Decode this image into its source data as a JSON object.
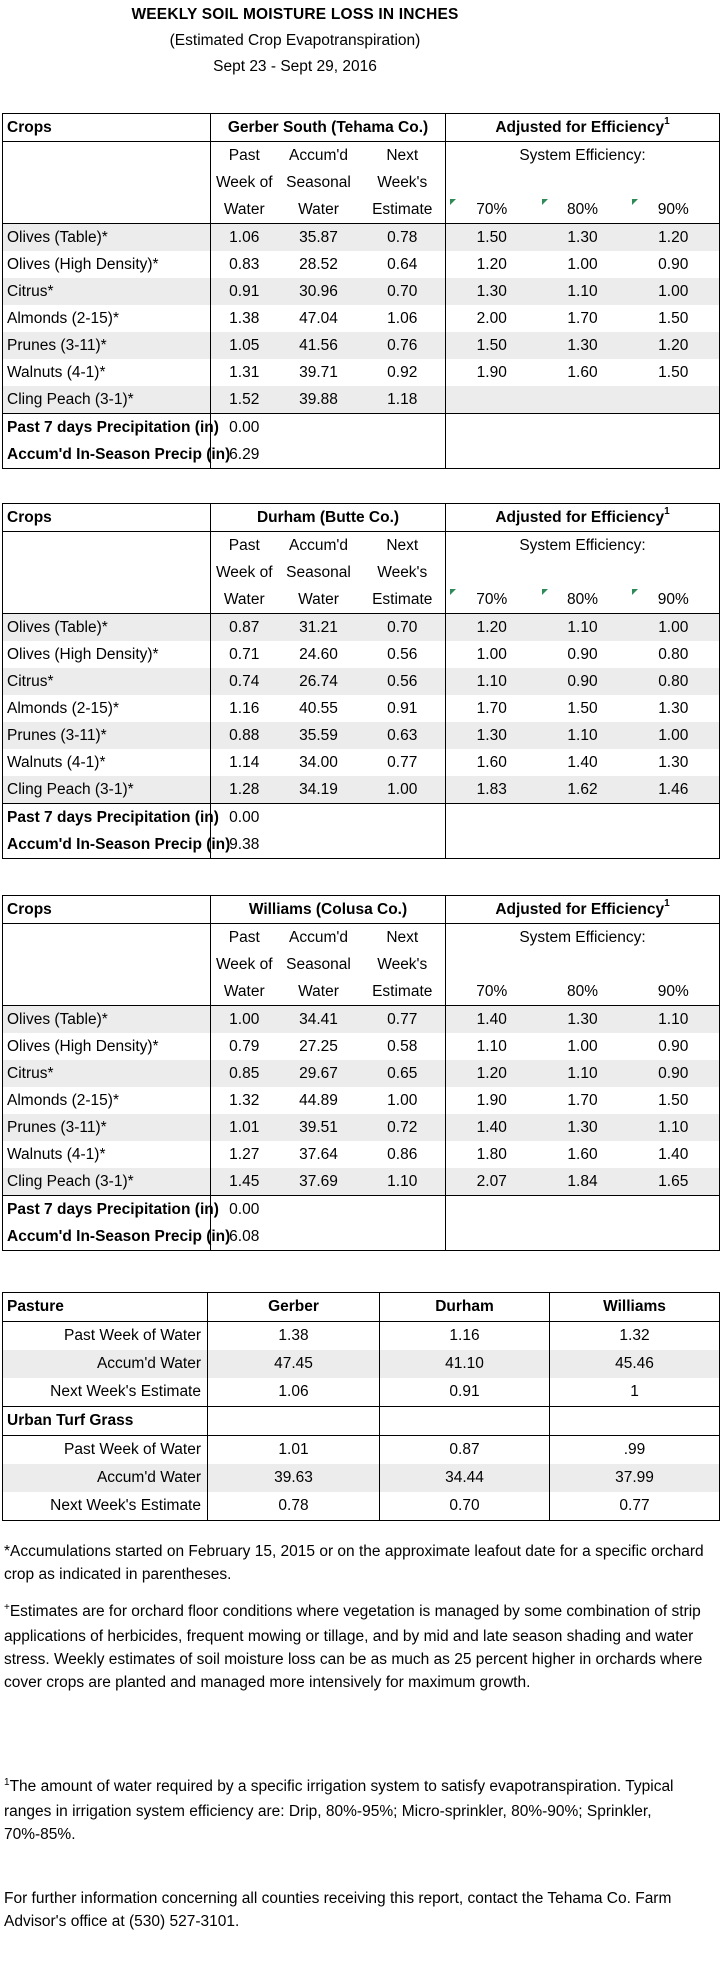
{
  "title": "WEEKLY SOIL MOISTURE LOSS IN INCHES",
  "subtitle": "(Estimated Crop Evapotranspiration)",
  "dates": "Sept 23 - Sept 29, 2016",
  "headers": {
    "crops": "Crops",
    "adjusted": "Adjusted for Efficiency",
    "adjusted_sup": "1",
    "system_eff": "System Efficiency:",
    "col1": [
      "Past",
      "Week of",
      "Water"
    ],
    "col2": [
      "Accum'd",
      "Seasonal",
      "Water"
    ],
    "col3": [
      "Next",
      "Week's",
      "Estimate"
    ],
    "eff": [
      "70%",
      "80%",
      "90%"
    ]
  },
  "labels": {
    "precip7": "Past 7 days Precipitation (in)",
    "precipSeason": "Accum'd In-Season Precip (in)"
  },
  "sections": [
    {
      "location": "Gerber South (Tehama Co.)",
      "rows": [
        {
          "crop": "Olives (Table)*",
          "v": [
            "1.06",
            "35.87",
            "0.78",
            "1.50",
            "1.30",
            "1.20"
          ]
        },
        {
          "crop": "Olives (High Density)*",
          "v": [
            "0.83",
            "28.52",
            "0.64",
            "1.20",
            "1.00",
            "0.90"
          ]
        },
        {
          "crop": "Citrus*",
          "v": [
            "0.91",
            "30.96",
            "0.70",
            "1.30",
            "1.10",
            "1.00"
          ]
        },
        {
          "crop": "Almonds (2-15)*",
          "v": [
            "1.38",
            "47.04",
            "1.06",
            "2.00",
            "1.70",
            "1.50"
          ]
        },
        {
          "crop": "Prunes (3-11)*",
          "v": [
            "1.05",
            "41.56",
            "0.76",
            "1.50",
            "1.30",
            "1.20"
          ]
        },
        {
          "crop": "Walnuts (4-1)*",
          "v": [
            "1.31",
            "39.71",
            "0.92",
            "1.90",
            "1.60",
            "1.50"
          ]
        },
        {
          "crop": "Cling Peach (3-1)*",
          "v": [
            "1.52",
            "39.88",
            "1.18",
            "",
            "",
            ""
          ]
        }
      ],
      "precip7": "0.00",
      "precipSeason": "6.29"
    },
    {
      "location": "Durham (Butte Co.)",
      "rows": [
        {
          "crop": "Olives (Table)*",
          "v": [
            "0.87",
            "31.21",
            "0.70",
            "1.20",
            "1.10",
            "1.00"
          ]
        },
        {
          "crop": "Olives (High Density)*",
          "v": [
            "0.71",
            "24.60",
            "0.56",
            "1.00",
            "0.90",
            "0.80"
          ]
        },
        {
          "crop": "Citrus*",
          "v": [
            "0.74",
            "26.74",
            "0.56",
            "1.10",
            "0.90",
            "0.80"
          ]
        },
        {
          "crop": "Almonds (2-15)*",
          "v": [
            "1.16",
            "40.55",
            "0.91",
            "1.70",
            "1.50",
            "1.30"
          ]
        },
        {
          "crop": "Prunes (3-11)*",
          "v": [
            "0.88",
            "35.59",
            "0.63",
            "1.30",
            "1.10",
            "1.00"
          ]
        },
        {
          "crop": "Walnuts (4-1)*",
          "v": [
            "1.14",
            "34.00",
            "0.77",
            "1.60",
            "1.40",
            "1.30"
          ]
        },
        {
          "crop": "Cling Peach (3-1)*",
          "v": [
            "1.28",
            "34.19",
            "1.00",
            "1.83",
            "1.62",
            "1.46"
          ]
        }
      ],
      "precip7": "0.00",
      "precipSeason": "9.38"
    },
    {
      "location": "Williams (Colusa Co.)",
      "rows": [
        {
          "crop": "Olives (Table)*",
          "v": [
            "1.00",
            "34.41",
            "0.77",
            "1.40",
            "1.30",
            "1.10"
          ]
        },
        {
          "crop": "Olives (High Density)*",
          "v": [
            "0.79",
            "27.25",
            "0.58",
            "1.10",
            "1.00",
            "0.90"
          ]
        },
        {
          "crop": "Citrus*",
          "v": [
            "0.85",
            "29.67",
            "0.65",
            "1.20",
            "1.10",
            "0.90"
          ]
        },
        {
          "crop": "Almonds (2-15)*",
          "v": [
            "1.32",
            "44.89",
            "1.00",
            "1.90",
            "1.70",
            "1.50"
          ]
        },
        {
          "crop": "Prunes (3-11)*",
          "v": [
            "1.01",
            "39.51",
            "0.72",
            "1.40",
            "1.30",
            "1.10"
          ]
        },
        {
          "crop": "Walnuts (4-1)*",
          "v": [
            "1.27",
            "37.64",
            "0.86",
            "1.80",
            "1.60",
            "1.40"
          ]
        },
        {
          "crop": "Cling Peach (3-1)*",
          "v": [
            "1.45",
            "37.69",
            "1.10",
            "2.07",
            "1.84",
            "1.65"
          ]
        }
      ],
      "precip7": "0.00",
      "precipSeason": "6.08"
    }
  ],
  "pasture": {
    "title": "Pasture",
    "locations": [
      "Gerber",
      "Durham",
      "Williams"
    ],
    "rows": [
      {
        "label": "Past Week of Water",
        "v": [
          "1.38",
          "1.16",
          "1.32"
        ]
      },
      {
        "label": "Accum'd Water",
        "v": [
          "47.45",
          "41.10",
          "45.46"
        ]
      },
      {
        "label": "Next Week's Estimate",
        "v": [
          "1.06",
          "0.91",
          "1"
        ]
      }
    ]
  },
  "turf": {
    "title": "Urban Turf Grass",
    "rows": [
      {
        "label": "Past Week of Water",
        "v": [
          "1.01",
          "0.87",
          ".99"
        ]
      },
      {
        "label": "Accum'd Water",
        "v": [
          "39.63",
          "34.44",
          "37.99"
        ]
      },
      {
        "label": "Next Week's Estimate",
        "v": [
          "0.78",
          "0.70",
          "0.77"
        ]
      }
    ]
  },
  "notes": {
    "n1": "*Accumulations started on February 15, 2015 or on the approximate leafout date for a specific orchard crop as indicated in parentheses.",
    "n2_sup": "+",
    "n2": "Estimates are for orchard floor conditions where vegetation is managed by some combination of strip applications of herbicides, frequent mowing or tillage, and by mid and late season shading and water stress.  Weekly estimates of soil moisture loss can be as much as 25 percent higher in orchards where cover crops are planted and managed more intensively for maximum growth.",
    "n3_sup": "1",
    "n3": "The amount of water required by a specific irrigation system to satisfy evapotranspiration. Typical ranges in irrigation system efficiency are: Drip, 80%-95%; Micro-sprinkler, 80%-90%; Sprinkler, 70%-85%.",
    "n4": "For further information concerning all counties receiving this report, contact the Tehama Co. Farm Advisor's office at (530) 527-3101."
  }
}
